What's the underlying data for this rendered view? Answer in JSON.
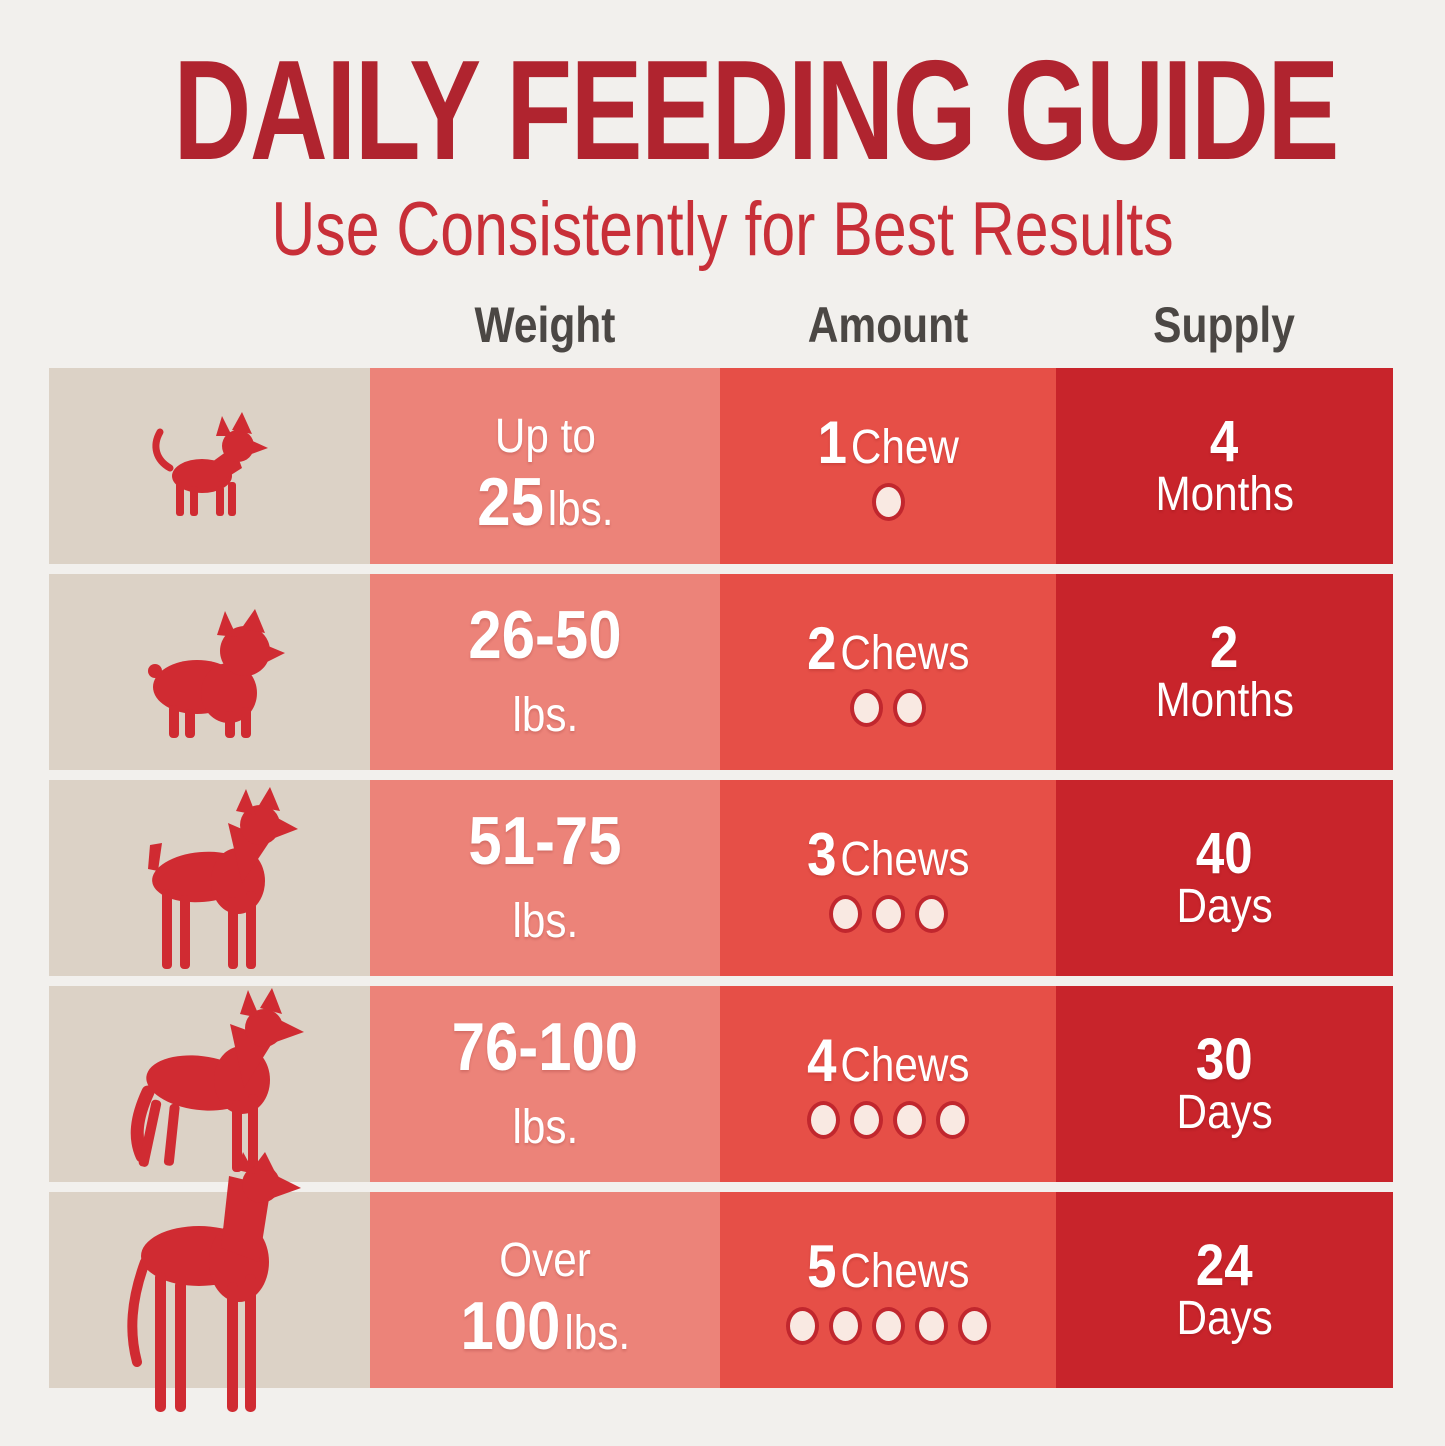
{
  "title": "DAILY FEEDING GUIDE",
  "subtitle": "Use Consistently for Best Results",
  "headers": {
    "weight": "Weight",
    "amount": "Amount",
    "supply": "Supply"
  },
  "colors": {
    "background": "#f2f0ed",
    "title": "#b0242f",
    "subtitle": "#c82f38",
    "header_text": "#4b4744",
    "dog_column": "#dcd2c6",
    "weight_column": "#ec8379",
    "amount_column": "#e64f47",
    "supply_column": "#c8242b",
    "dog_silhouette": "#d02b32",
    "chew_dot_fill": "#f9e9e2",
    "chew_dot_ring": "#c1272e",
    "cell_text": "#ffffff"
  },
  "rows": [
    {
      "dog": "chihuahua",
      "weight_l1_reg": "Up to",
      "weight_l2_bold": "25",
      "weight_l2_reg": "lbs.",
      "amount_num": "1",
      "amount_word": "Chew",
      "dots": 1,
      "supply_num": "4",
      "supply_unit": "Months"
    },
    {
      "dog": "french-bulldog",
      "weight_l1_bold": "26-50",
      "weight_l2_reg": "lbs.",
      "amount_num": "2",
      "amount_word": "Chews",
      "dots": 2,
      "supply_num": "2",
      "supply_unit": "Months"
    },
    {
      "dog": "boxer",
      "weight_l1_bold": "51-75",
      "weight_l2_reg": "lbs.",
      "amount_num": "3",
      "amount_word": "Chews",
      "dots": 3,
      "supply_num": "40",
      "supply_unit": "Days"
    },
    {
      "dog": "german-shepherd",
      "weight_l1_bold": "76-100",
      "weight_l2_reg": "lbs.",
      "amount_num": "4",
      "amount_word": "Chews",
      "dots": 4,
      "supply_num": "30",
      "supply_unit": "Days"
    },
    {
      "dog": "great-dane",
      "weight_l1_reg": "Over",
      "weight_l2_bold": "100",
      "weight_l2_reg": "lbs.",
      "amount_num": "5",
      "amount_word": "Chews",
      "dots": 5,
      "supply_num": "24",
      "supply_unit": "Days"
    }
  ],
  "chart_data": {
    "type": "table",
    "title": "DAILY FEEDING GUIDE",
    "subtitle": "Use Consistently for Best Results",
    "columns": [
      "Weight",
      "Amount",
      "Supply"
    ],
    "rows": [
      [
        "Up to 25 lbs.",
        "1 Chew",
        "4 Months"
      ],
      [
        "26-50 lbs.",
        "2 Chews",
        "2 Months"
      ],
      [
        "51-75 lbs.",
        "3 Chews",
        "40 Days"
      ],
      [
        "76-100 lbs.",
        "4 Chews",
        "30 Days"
      ],
      [
        "Over 100 lbs.",
        "5 Chews",
        "24 Days"
      ]
    ]
  }
}
